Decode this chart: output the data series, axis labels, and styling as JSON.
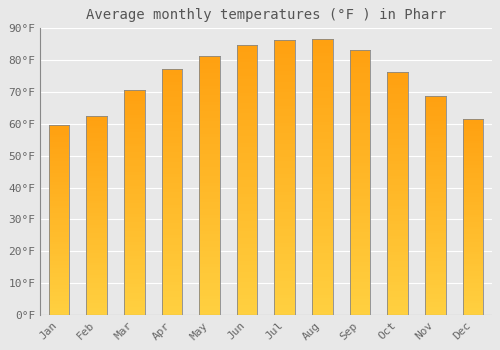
{
  "months": [
    "Jan",
    "Feb",
    "Mar",
    "Apr",
    "May",
    "Jun",
    "Jul",
    "Aug",
    "Sep",
    "Oct",
    "Nov",
    "Dec"
  ],
  "values": [
    59.5,
    62.5,
    70.5,
    77,
    81,
    84.5,
    86,
    86.5,
    83,
    76,
    68.5,
    61.5
  ],
  "title": "Average monthly temperatures (°F ) in Pharr",
  "ylim": [
    0,
    90
  ],
  "yticks": [
    0,
    10,
    20,
    30,
    40,
    50,
    60,
    70,
    80,
    90
  ],
  "ytick_labels": [
    "0°F",
    "10°F",
    "20°F",
    "30°F",
    "40°F",
    "50°F",
    "60°F",
    "70°F",
    "80°F",
    "90°F"
  ],
  "bar_color_bottom": "#FFD040",
  "bar_color_top": "#FFA010",
  "bar_edge_color": "#888888",
  "background_color": "#E8E8E8",
  "grid_color": "#FFFFFF",
  "title_fontsize": 10,
  "tick_fontsize": 8,
  "font_family": "monospace",
  "bar_width": 0.55
}
